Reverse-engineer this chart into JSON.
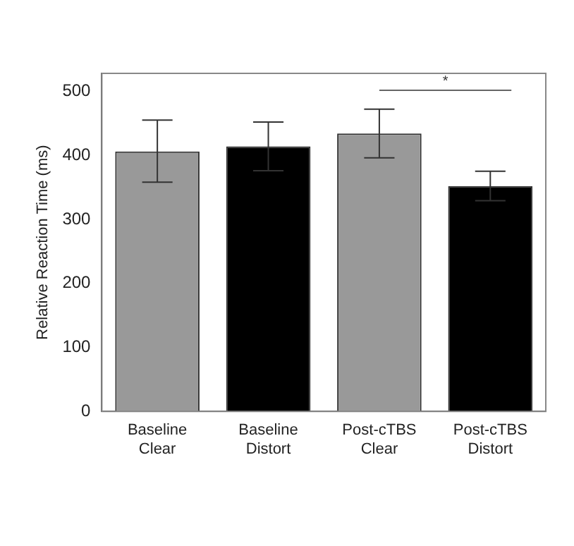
{
  "chart_data": {
    "type": "bar",
    "ylabel": "Relative Reaction Time (ms)",
    "categories": [
      "Baseline\nClear",
      "Baseline\nDistort",
      "Post-cTBS\nClear",
      "Post-cTBS\nDistort"
    ],
    "values": [
      406,
      414,
      434,
      352
    ],
    "colors": [
      "#999999",
      "#000000",
      "#999999",
      "#000000"
    ],
    "errors": [
      [
        358,
        455
      ],
      [
        376,
        452
      ],
      [
        396,
        472
      ],
      [
        329,
        375
      ]
    ],
    "ylim": [
      0,
      528
    ],
    "yticks": [
      0,
      100,
      200,
      300,
      400,
      500
    ],
    "grid": false,
    "legend": false,
    "annotations": [
      "*"
    ]
  }
}
